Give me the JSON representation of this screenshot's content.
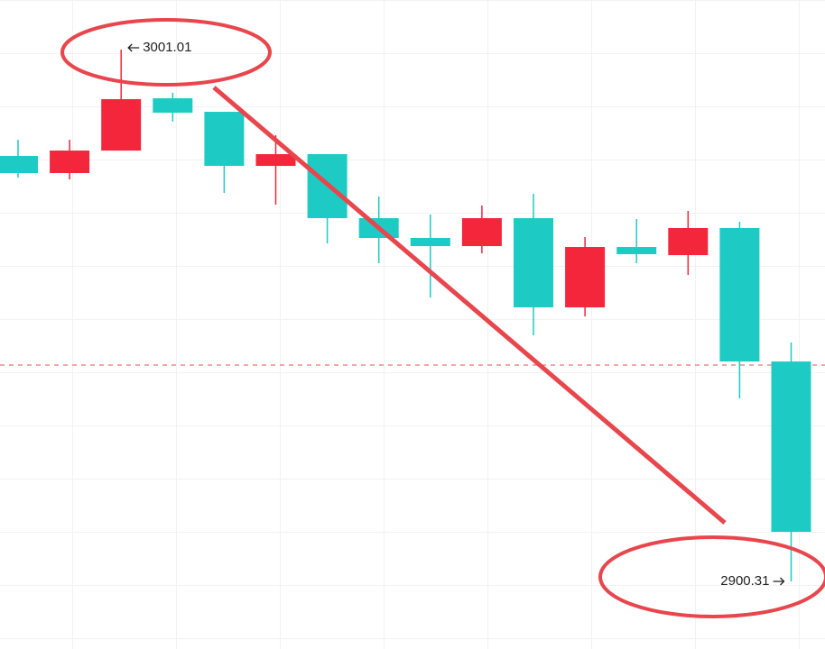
{
  "chart_data": {
    "type": "candlestick",
    "up_color": "#f3263b",
    "down_color": "#1dcbc4",
    "open": [
      2980.87,
      2977.63,
      2981.89,
      2991.79,
      2989.23,
      2978.99,
      2981.21,
      2969.09,
      2965.34,
      2963.8,
      2969.09,
      2952.2,
      2963.63,
      2962.09,
      2967.22,
      2941.95
    ],
    "close": [
      2977.63,
      2981.89,
      2991.62,
      2989.06,
      2978.99,
      2981.21,
      2969.09,
      2965.34,
      2963.8,
      2969.09,
      2952.2,
      2963.63,
      2962.27,
      2967.22,
      2941.95,
      2909.7
    ],
    "high": [
      2983.94,
      2983.94,
      3001.01,
      2992.82,
      2989.23,
      2984.8,
      2981.21,
      2973.19,
      2969.78,
      2971.48,
      2973.7,
      2965.51,
      2968.92,
      2970.46,
      2968.41,
      2945.54
    ],
    "low": [
      2976.77,
      2976.43,
      2981.89,
      2987.36,
      2973.87,
      2971.65,
      2964.31,
      2960.56,
      2954.07,
      2962.44,
      2946.9,
      2950.49,
      2960.56,
      2958.34,
      2934.96,
      2900.31
    ],
    "ylim": [
      2887.51,
      3010.4
    ],
    "reference_line": 2941.27,
    "annotations": [
      {
        "label": "3001.01",
        "value": 3001.01
      },
      {
        "label": "2900.31",
        "value": 2900.31
      }
    ]
  }
}
